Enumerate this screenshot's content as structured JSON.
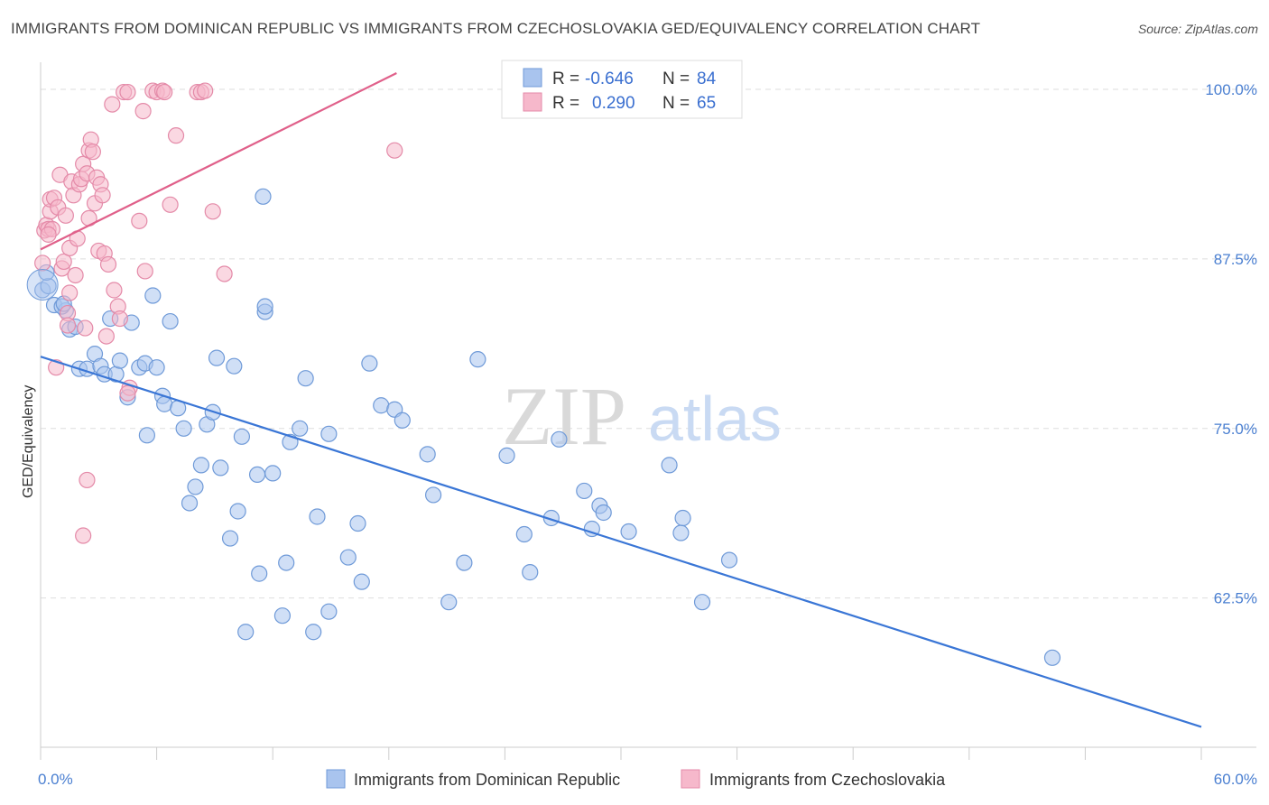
{
  "title": "IMMIGRANTS FROM DOMINICAN REPUBLIC VS IMMIGRANTS FROM CZECHOSLOVAKIA GED/EQUIVALENCY CORRELATION CHART",
  "source": "Source: ZipAtlas.com",
  "watermark": {
    "zip": "ZIP",
    "atlas": "atlas"
  },
  "legend": {
    "rows": [
      {
        "r_label": "R =",
        "r_value": "-0.646",
        "n_label": "N =",
        "n_value": "84",
        "color": "#a9c4ee",
        "stroke": "#6f9ad8"
      },
      {
        "r_label": "R =",
        "r_value": "0.290",
        "n_label": "N =",
        "n_value": "65",
        "color": "#f6b8cb",
        "stroke": "#e48aa8"
      }
    ]
  },
  "bottom_legend": [
    {
      "label": "Immigrants from Dominican Republic",
      "color": "#a9c4ee",
      "stroke": "#6f9ad8"
    },
    {
      "label": "Immigrants from Czechoslovakia",
      "color": "#f6b8cb",
      "stroke": "#e48aa8"
    }
  ],
  "chart_data": {
    "type": "scatter",
    "title": "IMMIGRANTS FROM DOMINICAN REPUBLIC VS IMMIGRANTS FROM CZECHOSLOVAKIA GED/EQUIVALENCY CORRELATION CHART",
    "xlabel": "",
    "ylabel": "GED/Equivalency",
    "xlim": [
      0,
      60
    ],
    "ylim": [
      51.5,
      102
    ],
    "x_tick_labels": [
      "0.0%",
      "60.0%"
    ],
    "y_ticks": [
      {
        "value": 100,
        "label": "100.0%"
      },
      {
        "value": 87.5,
        "label": "87.5%"
      },
      {
        "value": 75,
        "label": "75.0%"
      },
      {
        "value": 62.5,
        "label": "62.5%"
      }
    ],
    "grid": true,
    "legend_position": "top-center",
    "series": [
      {
        "name": "Immigrants from Dominican Republic",
        "color": "#a9c4ee",
        "line_color": "#3a76d6",
        "trend": {
          "x": [
            0,
            60
          ],
          "y": [
            80.3,
            53.0
          ]
        },
        "points": [
          [
            0.1,
            85.2
          ],
          [
            0.4,
            85.5
          ],
          [
            0.7,
            84.1
          ],
          [
            1.3,
            83.7
          ],
          [
            1.1,
            84.0
          ],
          [
            1.5,
            82.3
          ],
          [
            1.8,
            82.5
          ],
          [
            2.0,
            79.4
          ],
          [
            2.4,
            79.4
          ],
          [
            2.8,
            80.5
          ],
          [
            3.1,
            79.6
          ],
          [
            3.3,
            79.0
          ],
          [
            3.6,
            83.1
          ],
          [
            3.9,
            79.0
          ],
          [
            4.1,
            80.0
          ],
          [
            4.5,
            77.3
          ],
          [
            4.7,
            82.8
          ],
          [
            5.1,
            79.5
          ],
          [
            5.4,
            79.8
          ],
          [
            5.5,
            74.5
          ],
          [
            5.8,
            84.8
          ],
          [
            6.0,
            79.5
          ],
          [
            6.3,
            77.4
          ],
          [
            6.4,
            76.8
          ],
          [
            6.7,
            82.9
          ],
          [
            7.1,
            76.5
          ],
          [
            7.4,
            75.0
          ],
          [
            7.7,
            69.5
          ],
          [
            8.0,
            70.7
          ],
          [
            8.3,
            72.3
          ],
          [
            8.6,
            75.3
          ],
          [
            8.9,
            76.2
          ],
          [
            9.1,
            80.2
          ],
          [
            9.3,
            72.1
          ],
          [
            9.8,
            66.9
          ],
          [
            10.0,
            79.6
          ],
          [
            10.2,
            68.9
          ],
          [
            10.4,
            74.4
          ],
          [
            10.6,
            60.0
          ],
          [
            11.2,
            71.6
          ],
          [
            11.3,
            64.3
          ],
          [
            11.6,
            83.6
          ],
          [
            11.6,
            84.0
          ],
          [
            11.5,
            92.1
          ],
          [
            12.0,
            71.7
          ],
          [
            12.5,
            61.2
          ],
          [
            12.7,
            65.1
          ],
          [
            12.9,
            74.0
          ],
          [
            13.4,
            75.0
          ],
          [
            13.7,
            78.7
          ],
          [
            14.1,
            60.0
          ],
          [
            14.3,
            68.5
          ],
          [
            14.9,
            74.6
          ],
          [
            14.9,
            61.5
          ],
          [
            15.9,
            65.5
          ],
          [
            16.4,
            68.0
          ],
          [
            16.6,
            63.7
          ],
          [
            17.0,
            79.8
          ],
          [
            17.6,
            76.7
          ],
          [
            18.3,
            76.4
          ],
          [
            18.7,
            75.6
          ],
          [
            20.0,
            73.1
          ],
          [
            20.3,
            70.1
          ],
          [
            21.1,
            62.2
          ],
          [
            21.9,
            65.1
          ],
          [
            22.6,
            80.1
          ],
          [
            24.1,
            73.0
          ],
          [
            25.0,
            67.2
          ],
          [
            25.3,
            64.4
          ],
          [
            26.4,
            68.4
          ],
          [
            26.8,
            74.2
          ],
          [
            28.1,
            70.4
          ],
          [
            28.5,
            67.6
          ],
          [
            28.9,
            69.3
          ],
          [
            29.1,
            68.8
          ],
          [
            30.4,
            67.4
          ],
          [
            32.5,
            72.3
          ],
          [
            33.1,
            67.3
          ],
          [
            33.2,
            68.4
          ],
          [
            34.2,
            62.2
          ],
          [
            35.6,
            65.3
          ],
          [
            52.3,
            58.1
          ],
          [
            1.2,
            84.2
          ],
          [
            0.3,
            86.5
          ]
        ]
      },
      {
        "name": "Immigrants from Czechoslovakia",
        "color": "#f6b8cb",
        "line_color": "#e0608a",
        "trend": {
          "x": [
            0,
            18.4
          ],
          "y": [
            88.2,
            101.2
          ]
        },
        "points": [
          [
            0.1,
            87.2
          ],
          [
            0.2,
            89.6
          ],
          [
            0.3,
            90.0
          ],
          [
            0.4,
            89.7
          ],
          [
            0.5,
            91.0
          ],
          [
            0.5,
            91.9
          ],
          [
            0.6,
            89.7
          ],
          [
            0.7,
            92.0
          ],
          [
            0.8,
            79.5
          ],
          [
            0.9,
            91.3
          ],
          [
            1.0,
            93.7
          ],
          [
            1.1,
            86.8
          ],
          [
            1.2,
            87.3
          ],
          [
            1.3,
            90.7
          ],
          [
            1.4,
            83.5
          ],
          [
            1.4,
            82.6
          ],
          [
            1.5,
            88.3
          ],
          [
            1.5,
            85.0
          ],
          [
            1.6,
            93.2
          ],
          [
            1.7,
            92.2
          ],
          [
            1.8,
            86.3
          ],
          [
            1.9,
            89.0
          ],
          [
            2.0,
            93.0
          ],
          [
            2.1,
            93.4
          ],
          [
            2.2,
            67.1
          ],
          [
            2.2,
            94.5
          ],
          [
            2.3,
            82.4
          ],
          [
            2.4,
            71.2
          ],
          [
            2.4,
            93.8
          ],
          [
            2.5,
            95.5
          ],
          [
            2.5,
            90.5
          ],
          [
            2.6,
            96.3
          ],
          [
            2.7,
            95.4
          ],
          [
            2.8,
            91.6
          ],
          [
            2.9,
            93.5
          ],
          [
            3.0,
            88.1
          ],
          [
            3.1,
            93.0
          ],
          [
            3.2,
            92.2
          ],
          [
            3.3,
            87.9
          ],
          [
            3.4,
            81.8
          ],
          [
            3.5,
            87.1
          ],
          [
            3.7,
            98.9
          ],
          [
            3.8,
            85.2
          ],
          [
            4.0,
            84.0
          ],
          [
            4.1,
            83.1
          ],
          [
            4.3,
            99.8
          ],
          [
            4.5,
            99.8
          ],
          [
            4.6,
            78.0
          ],
          [
            4.5,
            77.6
          ],
          [
            5.1,
            90.3
          ],
          [
            5.3,
            98.4
          ],
          [
            5.4,
            86.6
          ],
          [
            5.8,
            99.9
          ],
          [
            6.0,
            99.8
          ],
          [
            6.3,
            99.9
          ],
          [
            6.4,
            99.8
          ],
          [
            6.7,
            91.5
          ],
          [
            7.0,
            96.6
          ],
          [
            8.1,
            99.8
          ],
          [
            8.3,
            99.8
          ],
          [
            8.5,
            99.9
          ],
          [
            8.9,
            91.0
          ],
          [
            9.5,
            86.4
          ],
          [
            18.3,
            95.5
          ],
          [
            0.4,
            89.3
          ]
        ]
      }
    ]
  }
}
